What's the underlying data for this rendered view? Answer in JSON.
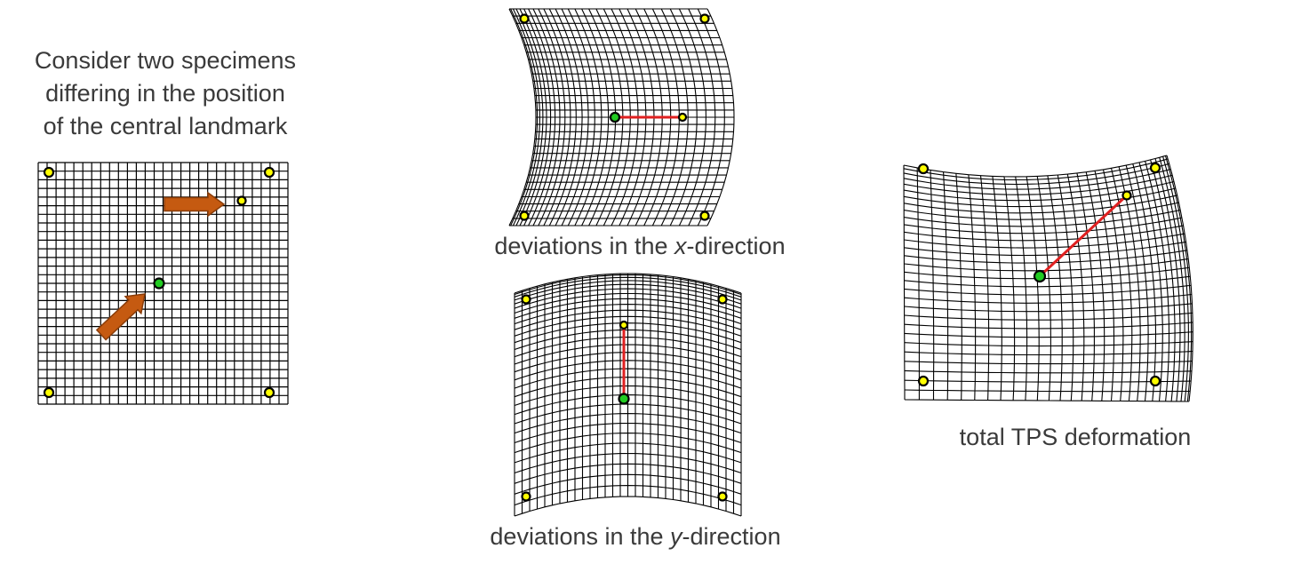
{
  "intro": {
    "line1": "Consider two specimens",
    "line2": "differing in the position",
    "line3": "of the central landmark"
  },
  "panels": {
    "x_direction": {
      "prefix": "deviations in the ",
      "axis": "x",
      "suffix": "-direction"
    },
    "y_direction": {
      "prefix": "deviations in the ",
      "axis": "y",
      "suffix": "-direction"
    },
    "total": {
      "label": "total TPS deformation"
    }
  },
  "colors": {
    "grid": "#000000",
    "landmark_fixed": "#ffff00",
    "landmark_center": "#22cc22",
    "displacement_line": "#e02020",
    "arrow": "#c55a11"
  }
}
